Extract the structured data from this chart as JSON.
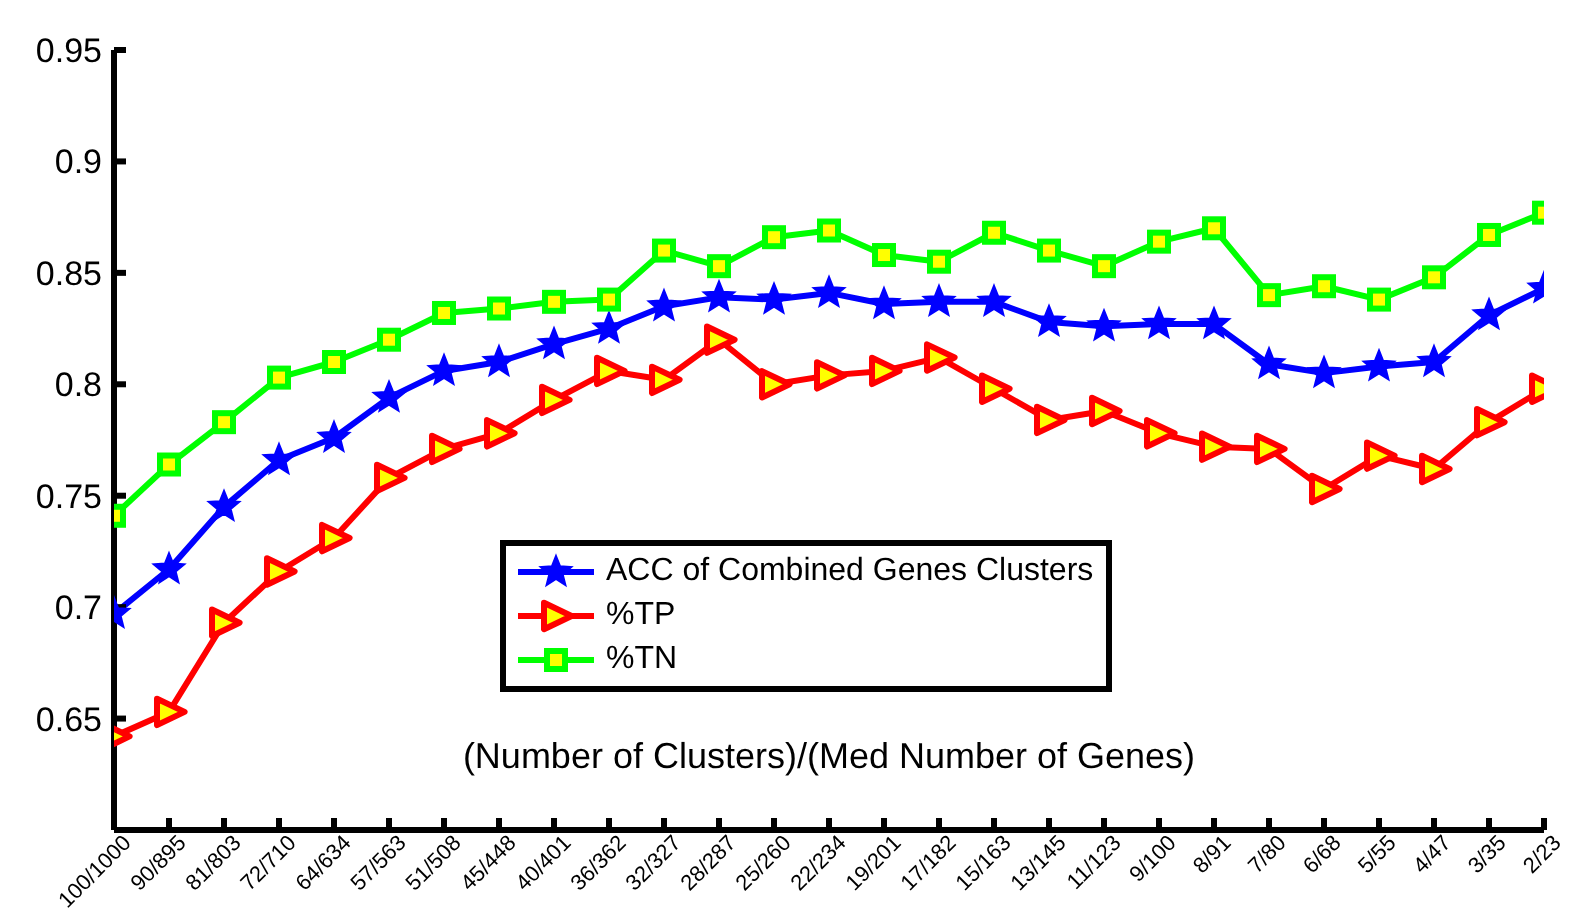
{
  "chart_data": {
    "type": "line",
    "xlabel": "(Number of Clusters)/(Med Number of Genes)",
    "categories": [
      "100/1000",
      "90/895",
      "81/803",
      "72/710",
      "64/634",
      "57/563",
      "51/508",
      "45/448",
      "40/401",
      "36/362",
      "32/327",
      "28/287",
      "25/260",
      "22/234",
      "19/201",
      "17/182",
      "15/163",
      "13/145",
      "11/123",
      "9/100",
      "8/91",
      "7/80",
      "6/68",
      "5/55",
      "4/47",
      "3/35",
      "2/23"
    ],
    "series": [
      {
        "name": "ACC of Combined Genes Clusters",
        "color": "#0000ff",
        "marker": "star",
        "values": [
          0.697,
          0.717,
          0.745,
          0.766,
          0.776,
          0.794,
          0.806,
          0.81,
          0.818,
          0.825,
          0.835,
          0.839,
          0.838,
          0.841,
          0.836,
          0.837,
          0.837,
          0.828,
          0.826,
          0.827,
          0.827,
          0.809,
          0.805,
          0.808,
          0.81,
          0.831,
          0.843
        ]
      },
      {
        "name": "%TP",
        "color": "#ff0000",
        "marker": "triangle",
        "values": [
          0.642,
          0.653,
          0.693,
          0.716,
          0.731,
          0.758,
          0.771,
          0.778,
          0.793,
          0.806,
          0.802,
          0.82,
          0.8,
          0.804,
          0.806,
          0.812,
          0.798,
          0.784,
          0.788,
          0.778,
          0.772,
          0.771,
          0.753,
          0.768,
          0.762,
          0.783,
          0.798
        ]
      },
      {
        "name": "%TN",
        "color": "#00ff00",
        "marker": "square",
        "values": [
          0.741,
          0.764,
          0.783,
          0.803,
          0.81,
          0.82,
          0.832,
          0.834,
          0.837,
          0.838,
          0.86,
          0.853,
          0.866,
          0.869,
          0.858,
          0.855,
          0.868,
          0.86,
          0.853,
          0.864,
          0.87,
          0.84,
          0.844,
          0.838,
          0.848,
          0.867,
          0.877
        ]
      }
    ],
    "ylim": [
      0.6,
      0.95
    ],
    "yticks": [
      0.65,
      0.7,
      0.75,
      0.8,
      0.85,
      0.9,
      0.95
    ],
    "grid": false,
    "legend": "center",
    "line_style": "solid"
  }
}
